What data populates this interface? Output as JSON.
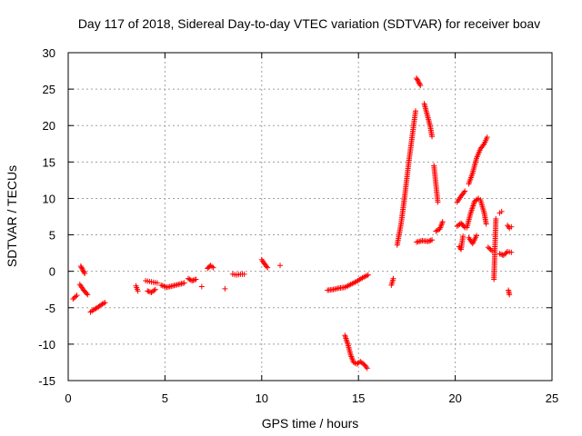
{
  "chart_data": {
    "type": "scatter",
    "title": "Day 117 of 2018, Sidereal Day-to-day VTEC variation (SDTVAR) for receiver boav",
    "xlabel": "GPS time / hours",
    "ylabel": "SDTVAR / TECUs",
    "xlim": [
      0,
      25
    ],
    "ylim": [
      -15,
      30
    ],
    "xticks": [
      0,
      5,
      10,
      15,
      20,
      25
    ],
    "yticks": [
      -15,
      -10,
      -5,
      0,
      5,
      10,
      15,
      20,
      25,
      30
    ],
    "grid": true,
    "marker": "plus",
    "color": "#ff0000",
    "segments": [
      {
        "x": [
          0.25,
          0.45
        ],
        "y": [
          -3.8,
          -3.3
        ]
      },
      {
        "x": [
          0.6,
          0.7,
          0.8,
          0.9,
          1.0
        ],
        "y": [
          -1.8,
          -2.2,
          -2.6,
          -2.9,
          -3.2
        ]
      },
      {
        "x": [
          0.65,
          0.75,
          0.85
        ],
        "y": [
          0.7,
          0.2,
          -0.3
        ]
      },
      {
        "x": [
          1.15,
          1.3,
          1.5,
          1.7,
          1.9
        ],
        "y": [
          -5.6,
          -5.3,
          -5.0,
          -4.6,
          -4.3
        ]
      },
      {
        "x": [
          3.5,
          3.6
        ],
        "y": [
          -2.0,
          -2.7
        ]
      },
      {
        "x": [
          4.0,
          4.2,
          4.4,
          4.6
        ],
        "y": [
          -1.3,
          -1.4,
          -1.5,
          -1.6
        ]
      },
      {
        "x": [
          4.1,
          4.3,
          4.5
        ],
        "y": [
          -2.7,
          -2.9,
          -2.5
        ]
      },
      {
        "x": [
          4.8,
          5.1,
          5.4,
          5.7,
          6.0
        ],
        "y": [
          -1.9,
          -2.2,
          -2.0,
          -1.8,
          -1.6
        ]
      },
      {
        "x": [
          6.2,
          6.4,
          6.6
        ],
        "y": [
          -1.0,
          -1.3,
          -1.1
        ]
      },
      {
        "x": [
          6.9
        ],
        "y": [
          -2.1
        ]
      },
      {
        "x": [
          7.2,
          7.35,
          7.5
        ],
        "y": [
          0.4,
          0.8,
          0.5
        ]
      },
      {
        "x": [
          8.1
        ],
        "y": [
          -2.4
        ]
      },
      {
        "x": [
          8.5,
          8.7,
          8.9,
          9.1
        ],
        "y": [
          -0.4,
          -0.5,
          -0.4,
          -0.4
        ]
      },
      {
        "x": [
          10.0,
          10.15,
          10.3
        ],
        "y": [
          1.6,
          1.0,
          0.5
        ]
      },
      {
        "x": [
          10.95
        ],
        "y": [
          0.8
        ]
      },
      {
        "x": [
          13.4,
          13.7,
          14.0,
          14.3,
          14.6,
          14.9,
          15.2,
          15.5
        ],
        "y": [
          -2.6,
          -2.5,
          -2.3,
          -2.2,
          -1.8,
          -1.4,
          -0.9,
          -0.5
        ]
      },
      {
        "x": [
          14.3,
          14.45,
          14.6,
          14.75,
          14.9,
          15.1,
          15.3,
          15.45
        ],
        "y": [
          -8.8,
          -10.0,
          -11.5,
          -12.5,
          -12.7,
          -12.4,
          -12.8,
          -13.3
        ]
      },
      {
        "x": [
          16.7,
          16.8
        ],
        "y": [
          -1.9,
          -1.0
        ]
      },
      {
        "x": [
          17.0,
          17.2,
          17.4,
          17.6,
          17.8,
          17.95
        ],
        "y": [
          3.6,
          6.5,
          10.5,
          15.0,
          19.0,
          22.0
        ]
      },
      {
        "x": [
          18.0,
          18.1,
          18.2
        ],
        "y": [
          26.5,
          26.0,
          25.5
        ]
      },
      {
        "x": [
          18.4,
          18.55,
          18.7,
          18.8
        ],
        "y": [
          23.0,
          21.5,
          20.0,
          18.5
        ]
      },
      {
        "x": [
          18.0,
          18.3,
          18.6,
          18.8
        ],
        "y": [
          4.0,
          4.2,
          4.1,
          4.3
        ]
      },
      {
        "x": [
          18.9,
          19.0,
          19.1
        ],
        "y": [
          14.5,
          12.0,
          9.5
        ]
      },
      {
        "x": [
          19.0,
          19.2,
          19.35
        ],
        "y": [
          5.5,
          5.8,
          6.8
        ]
      },
      {
        "x": [
          20.1,
          20.3,
          20.5
        ],
        "y": [
          9.5,
          10.3,
          11.0
        ]
      },
      {
        "x": [
          20.1,
          20.3,
          20.5
        ],
        "y": [
          6.2,
          6.6,
          6.0
        ]
      },
      {
        "x": [
          20.2,
          20.3,
          20.4
        ],
        "y": [
          3.4,
          3.0,
          4.8
        ]
      },
      {
        "x": [
          20.7,
          20.9,
          21.1,
          21.3,
          21.5,
          21.65
        ],
        "y": [
          12.0,
          13.5,
          15.5,
          16.8,
          17.5,
          18.4
        ]
      },
      {
        "x": [
          20.6,
          20.8,
          21.0,
          21.2
        ],
        "y": [
          6.0,
          8.0,
          9.6,
          10.0
        ]
      },
      {
        "x": [
          20.7,
          20.9,
          21.1
        ],
        "y": [
          4.6,
          3.8,
          4.9
        ]
      },
      {
        "x": [
          21.3,
          21.5,
          21.6
        ],
        "y": [
          9.8,
          8.0,
          6.5
        ]
      },
      {
        "x": [
          21.7,
          21.9
        ],
        "y": [
          3.3,
          2.8
        ]
      },
      {
        "x": [
          22.0,
          22.1
        ],
        "y": [
          -1.1,
          7.2
        ]
      },
      {
        "x": [
          22.3,
          22.4
        ],
        "y": [
          8.0,
          8.2
        ]
      },
      {
        "x": [
          22.3,
          22.5,
          22.7,
          22.9
        ],
        "y": [
          2.4,
          2.2,
          2.7,
          2.6
        ]
      },
      {
        "x": [
          22.7,
          22.8,
          22.9
        ],
        "y": [
          6.3,
          5.9,
          6.1
        ]
      },
      {
        "x": [
          22.75,
          22.8
        ],
        "y": [
          -2.6,
          -3.2
        ]
      }
    ]
  }
}
